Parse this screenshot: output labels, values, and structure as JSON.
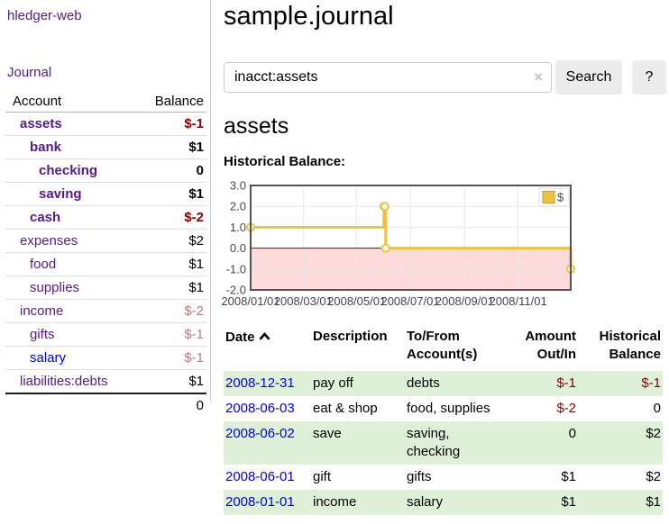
{
  "app_title": "hledger-web",
  "sidebar": {
    "journal_link": "Journal",
    "accounts": {
      "header": {
        "account": "Account",
        "balance": "Balance"
      },
      "rows": [
        {
          "name": "assets",
          "balance": "$-1"
        },
        {
          "name": "bank",
          "balance": "$1"
        },
        {
          "name": "checking",
          "balance": "0"
        },
        {
          "name": "saving",
          "balance": "$1"
        },
        {
          "name": "cash",
          "balance": "$-2"
        },
        {
          "name": "expenses",
          "balance": "$2"
        },
        {
          "name": "food",
          "balance": "$1"
        },
        {
          "name": "supplies",
          "balance": "$1"
        },
        {
          "name": "income",
          "balance": "$-2"
        },
        {
          "name": "gifts",
          "balance": "$-1"
        },
        {
          "name": "salary",
          "balance": "$-1"
        },
        {
          "name": "liabilities:debts",
          "balance": "$1"
        }
      ],
      "total": "0"
    }
  },
  "main": {
    "journal_title": "sample.journal",
    "search": {
      "value": "inacct:assets",
      "clear_icon": "×",
      "search_button": "Search",
      "help_button": "?"
    },
    "account_heading": "assets",
    "chart_label": "Historical Balance:"
  },
  "chart_data": {
    "type": "line",
    "step": true,
    "title": "Historical Balance:",
    "series": [
      {
        "name": "$",
        "color": "#edc240",
        "points": [
          {
            "date": "2008-01-01",
            "value": 1
          },
          {
            "date": "2008-06-01",
            "value": 2
          },
          {
            "date": "2008-06-02",
            "value": 2
          },
          {
            "date": "2008-06-03",
            "value": 0
          },
          {
            "date": "2008-12-31",
            "value": -1
          }
        ]
      }
    ],
    "x_range": [
      "2008-01-01",
      "2008-12-31"
    ],
    "x_tick_labels": [
      "2008/01/01",
      "2008/03/01",
      "2008/05/01",
      "2008/07/01",
      "2008/09/01",
      "2008/11/01"
    ],
    "y_tick_labels": [
      "3.0",
      "2.0",
      "1.0",
      "0.0",
      "-1.0",
      "-2.0"
    ],
    "ylim": [
      -2,
      3
    ],
    "grid": true,
    "legend": {
      "label": "$",
      "position": "top-right"
    },
    "negative_region_color": "#fcdada",
    "zero_line_color": "#8b0000",
    "grid_color": "#e8e8e8",
    "border_color": "#545454"
  },
  "register": {
    "sort": "ascending",
    "headers": {
      "date": "Date",
      "description": "Description",
      "accounts": "To/From Account(s)",
      "amount": "Amount Out/In",
      "balance": "Historical Balance"
    },
    "rows": [
      {
        "date": "2008-12-31",
        "description": "pay off",
        "accounts": "debts",
        "amount": "$-1",
        "balance": "$-1"
      },
      {
        "date": "2008-06-03",
        "description": "eat & shop",
        "accounts": "food, supplies",
        "amount": "$-2",
        "balance": "0"
      },
      {
        "date": "2008-06-02",
        "description": "save",
        "accounts": "saving, checking",
        "amount": "0",
        "balance": "$2"
      },
      {
        "date": "2008-06-01",
        "description": "gift",
        "accounts": "gifts",
        "amount": "$1",
        "balance": "$2"
      },
      {
        "date": "2008-01-01",
        "description": "income",
        "accounts": "salary",
        "amount": "$1",
        "balance": "$1"
      }
    ]
  },
  "colors": {
    "link_purple": "#551a8b",
    "link_blue": "#0000ee",
    "negative_strong": "#8b0000",
    "negative_dim": "#bc7a7a",
    "row_stripe_green": "#dff0d8",
    "chart_line_gold": "#edc240"
  }
}
